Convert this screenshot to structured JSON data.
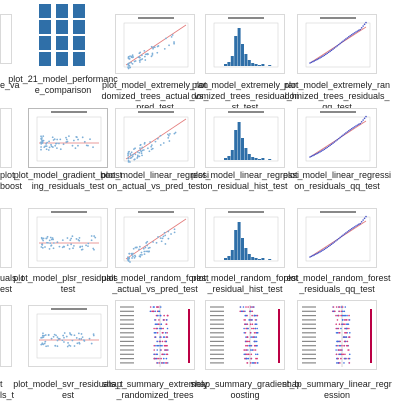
{
  "files": [
    {
      "label": "plot_21_model_performance_comparison"
    },
    {
      "label": "plot_model_extremely_randomized_trees_actual_vs_pred_test"
    },
    {
      "label": "plot_model_extremely_randomized_trees_residual_hist_test"
    },
    {
      "label": "plot_model_extremely_randomized_trees_residuals_qq_test"
    },
    {
      "label": "plot_model_gradient_boosting_residuals_test"
    },
    {
      "label": "plot_model_linear_regression_actual_vs_pred_test"
    },
    {
      "label": "plot_model_linear_regression_residual_hist_test"
    },
    {
      "label": "plot_model_linear_regression_residuals_qq_test"
    },
    {
      "label": "plot_model_plsr_residuals_test"
    },
    {
      "label": "plot_model_random_forest_actual_vs_pred_test"
    },
    {
      "label": "plot_model_random_forest_residual_hist_test"
    },
    {
      "label": "plot_model_random_forest_residuals_qq_test"
    },
    {
      "label": "plot_model_svr_residuals_test"
    },
    {
      "label": "shap_summary_extremely_randomized_trees"
    },
    {
      "label": "shap_summary_gradient_boosting"
    },
    {
      "label": "shap_summary_linear_regression"
    }
  ],
  "left_edge": [
    "e_va",
    "plot_",
    "boost",
    "uals_t",
    "est",
    "t",
    "ls_t",
    "est"
  ],
  "colors": {
    "bar": "#2f6fa8",
    "scatter": "#7fb0d8",
    "line": "#e37a7a",
    "qq": "#4a55c8"
  }
}
